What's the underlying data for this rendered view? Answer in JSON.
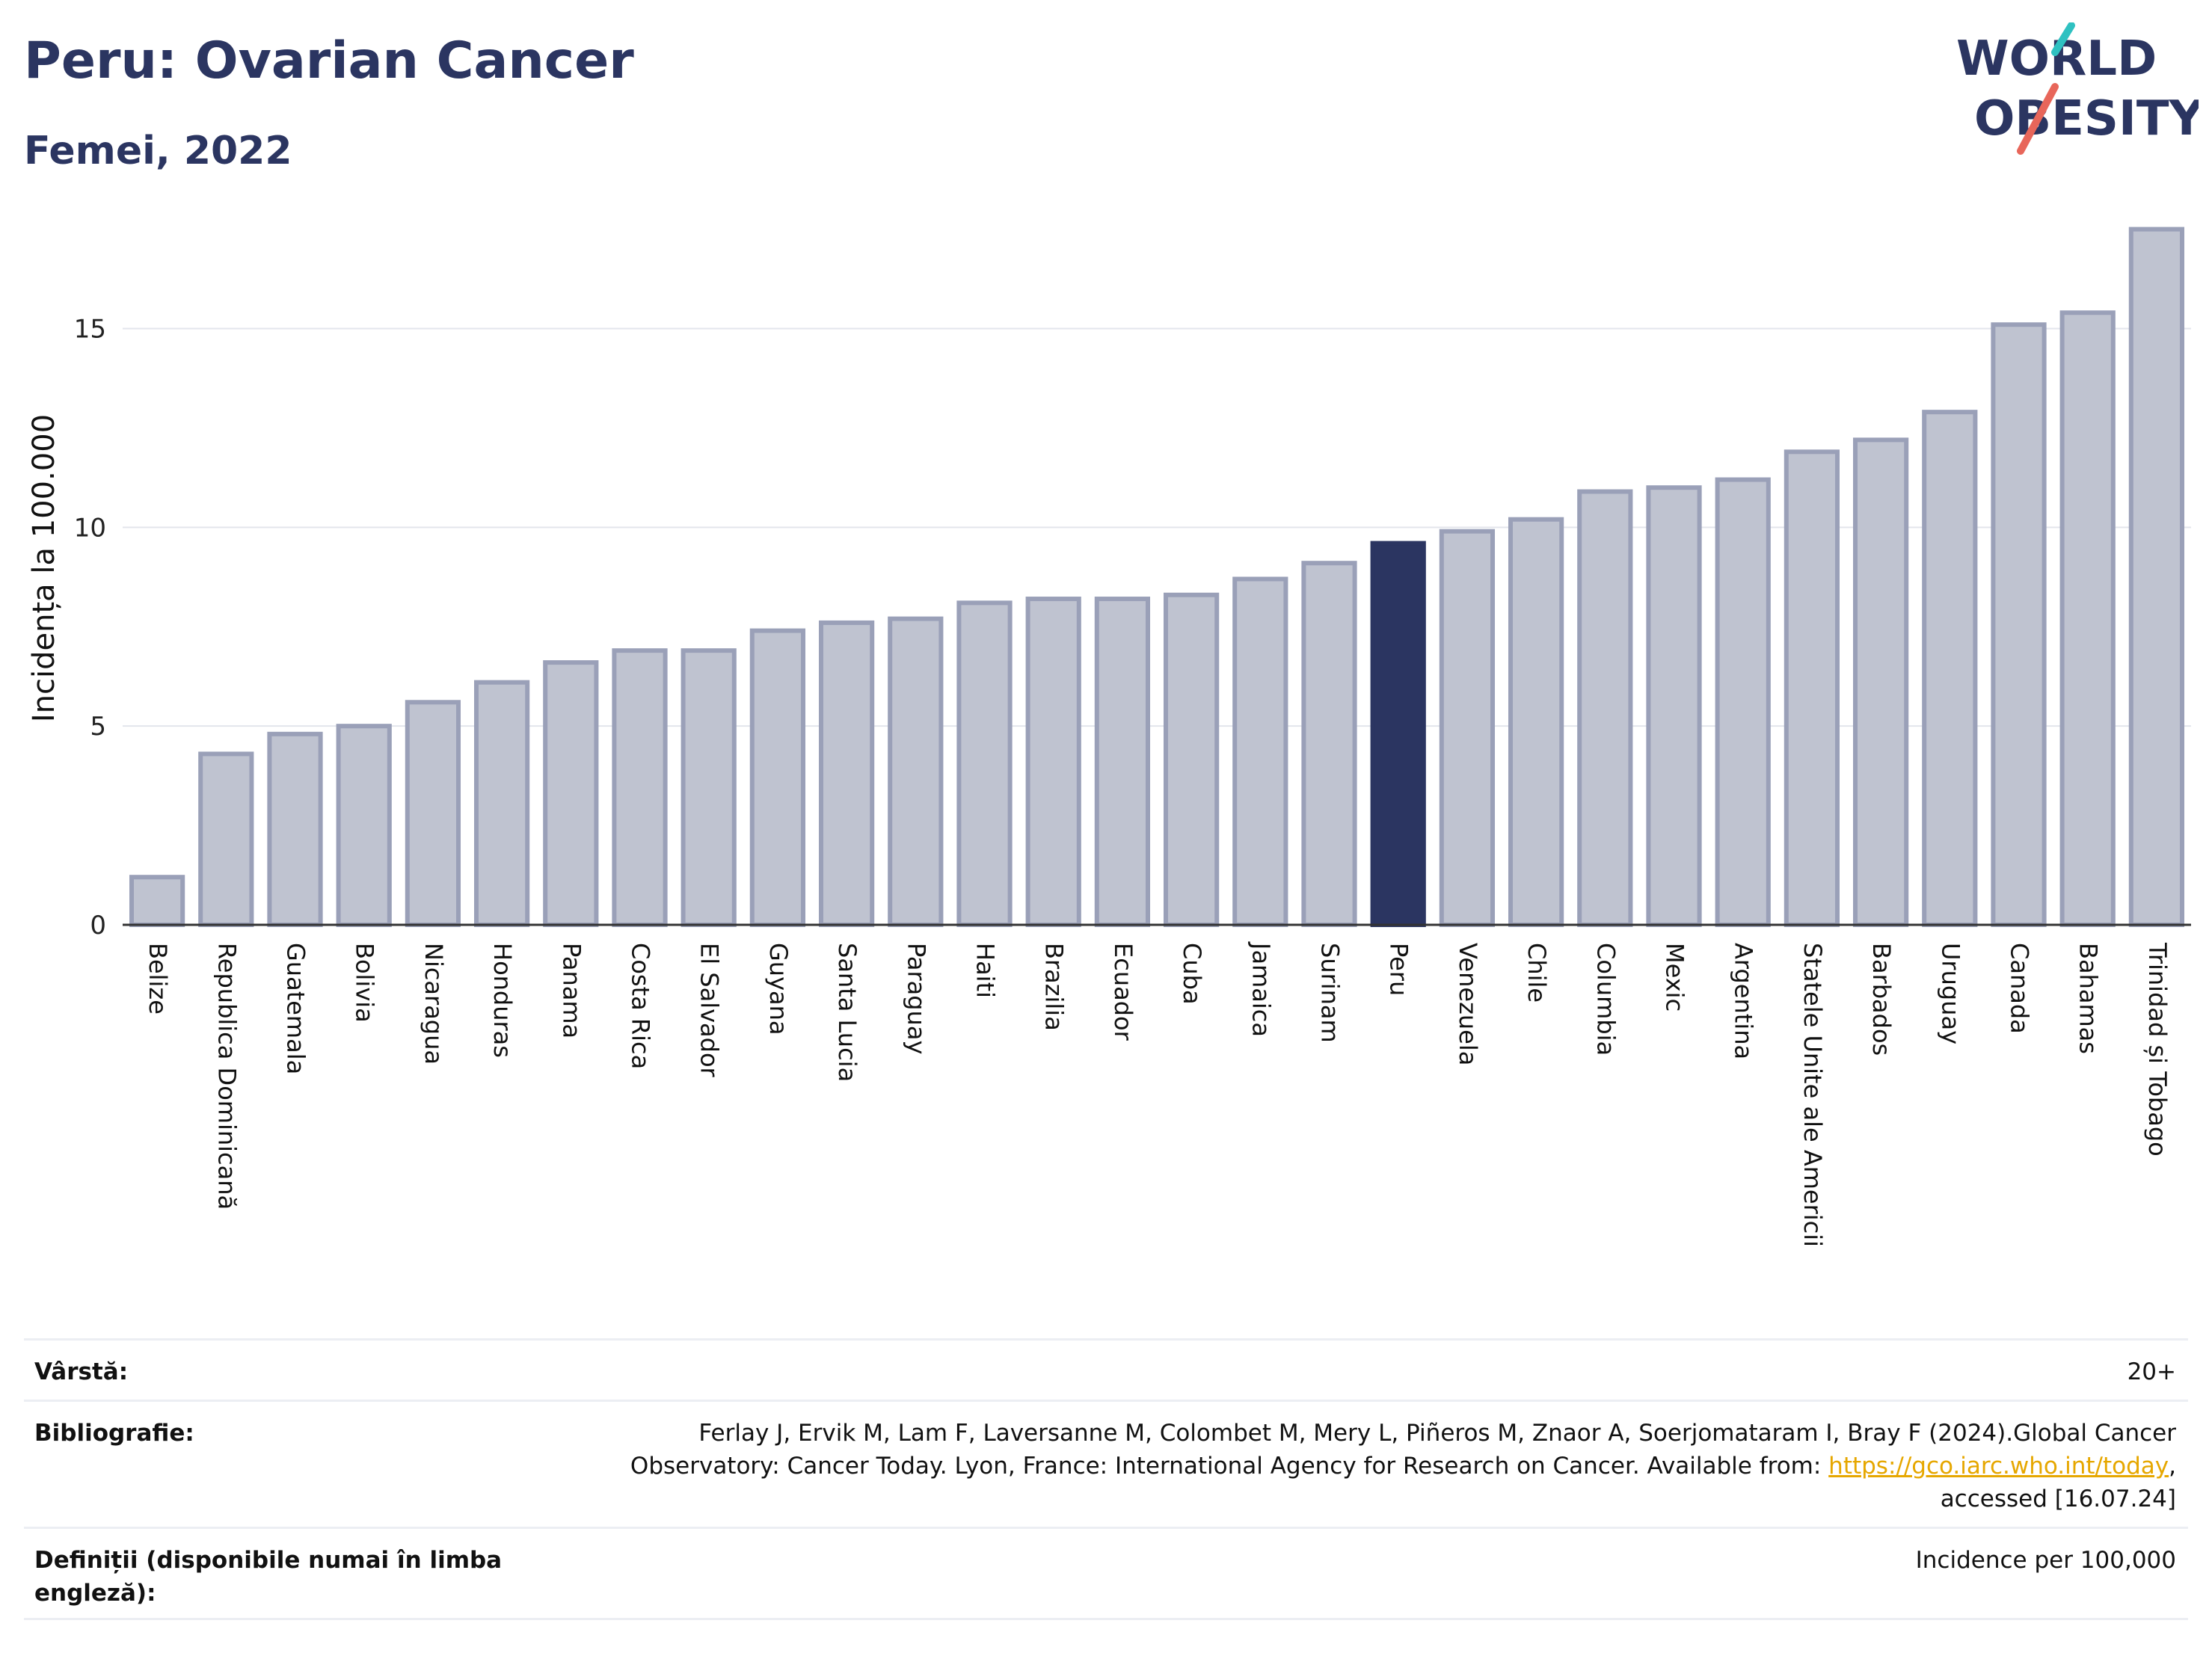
{
  "header": {
    "title": "Peru: Ovarian Cancer",
    "subtitle": "Femei, 2022"
  },
  "logo": {
    "line1": "WORLD",
    "line2": "OBESITY",
    "accent_colors": [
      "#2fc1c1",
      "#e8665a"
    ]
  },
  "chart_data": {
    "type": "bar",
    "title": "Peru: Ovarian Cancer",
    "subtitle": "Femei, 2022",
    "ylabel": "Incidența la 100.000",
    "xlabel": "",
    "ylim": [
      0,
      18
    ],
    "yticks": [
      0,
      5,
      10,
      15
    ],
    "grid": true,
    "highlight": "Peru",
    "colors": {
      "bar": "#bfc3d0",
      "bar_edge": "#9aa0b8",
      "highlight": "#2b3561"
    },
    "categories": [
      "Belize",
      "Republica Dominicană",
      "Guatemala",
      "Bolivia",
      "Nicaragua",
      "Honduras",
      "Panama",
      "Costa Rica",
      "El Salvador",
      "Guyana",
      "Santa Lucia",
      "Paraguay",
      "Haiti",
      "Brazilia",
      "Ecuador",
      "Cuba",
      "Jamaica",
      "Surinam",
      "Peru",
      "Venezuela",
      "Chile",
      "Columbia",
      "Mexic",
      "Argentina",
      "Statele Unite ale Americii",
      "Barbados",
      "Uruguay",
      "Canada",
      "Bahamas",
      "Trinidad și Tobago"
    ],
    "values": [
      1.2,
      4.3,
      4.8,
      5.0,
      5.6,
      6.1,
      6.6,
      6.9,
      6.9,
      7.4,
      7.6,
      7.7,
      8.1,
      8.2,
      8.2,
      8.3,
      8.7,
      9.1,
      9.6,
      9.9,
      10.2,
      10.9,
      11.0,
      11.2,
      11.9,
      12.2,
      12.9,
      15.1,
      15.4,
      17.5
    ]
  },
  "meta": {
    "age_label": "Vârstă:",
    "age_value": "20+",
    "bib_label": "Bibliografie:",
    "bib_text_1": "Ferlay J, Ervik M, Lam F, Laversanne M, Colombet M, Mery L, Piñeros M, Znaor A, Soerjomataram I, Bray F (2024).Global Cancer",
    "bib_text_2": "Observatory: Cancer Today. Lyon, France: International Agency for Research on Cancer. Available from: ",
    "bib_link": "https://gco.iarc.who.int/today",
    "bib_text_3": ",",
    "bib_text_4": "accessed [16.07.24]",
    "def_label": "Definiții (disponibile numai în limba engleză):",
    "def_value": "Incidence per 100,000"
  }
}
